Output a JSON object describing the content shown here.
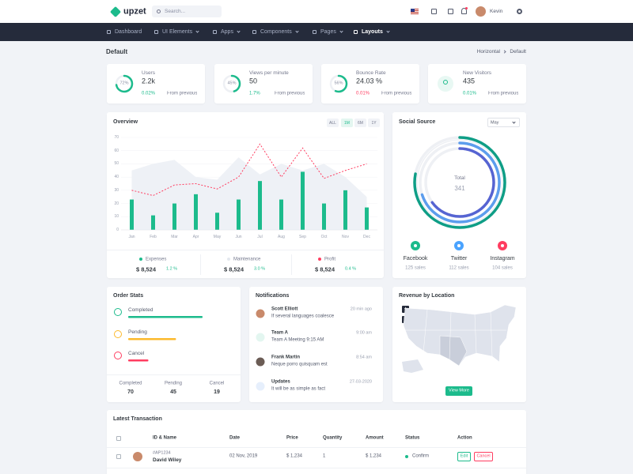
{
  "topbar": {
    "logo": "upzet",
    "search_placeholder": "Search...",
    "user": "Kevin"
  },
  "nav": [
    "Dashboard",
    "UI Elements",
    "Apps",
    "Components",
    "Pages",
    "Layouts"
  ],
  "page": {
    "title": "Default",
    "breadcrumb": [
      "Horizontal",
      "Default"
    ]
  },
  "stats": [
    {
      "label": "Users",
      "value": "2.2k",
      "progress": 72,
      "progress_label": "72%",
      "change": "0.02%",
      "change_color": "#1cbb8c",
      "note": "From previous"
    },
    {
      "label": "Views per minute",
      "value": "50",
      "progress": 45,
      "progress_label": "45%",
      "change": "1.7%",
      "change_color": "#1cbb8c",
      "note": "From previous"
    },
    {
      "label": "Bounce Rate",
      "value": "24.03 %",
      "progress": 56,
      "progress_label": "56%",
      "change": "0.01%",
      "change_color": "#ff3d60",
      "note": "From previous"
    },
    {
      "label": "New Visitors",
      "value": "435",
      "change": "0.01%",
      "change_color": "#1cbb8c",
      "note": "From previous"
    }
  ],
  "overview": {
    "title": "Overview",
    "ranges": [
      "ALL",
      "1M",
      "6M",
      "1Y"
    ],
    "categories": [
      "Jan",
      "Feb",
      "Mar",
      "Apr",
      "May",
      "Jun",
      "Jul",
      "Aug",
      "Sep",
      "Oct",
      "Nov",
      "Dec"
    ],
    "ylim": [
      0,
      70
    ],
    "yticks": [
      0,
      10,
      20,
      30,
      40,
      50,
      60,
      70
    ],
    "grid": true,
    "series": [
      {
        "name": "Expenses",
        "type": "bar",
        "color": "#1cbb8c",
        "values": [
          23,
          11,
          20,
          27,
          13,
          23,
          37,
          23,
          44,
          20,
          30,
          17
        ]
      },
      {
        "name": "Maintenance",
        "type": "area",
        "color": "#eef1f6",
        "values": [
          45,
          50,
          53,
          40,
          38,
          55,
          42,
          50,
          45,
          50,
          40,
          25
        ]
      },
      {
        "name": "Profit",
        "type": "line",
        "color": "#ff3d60",
        "values": [
          30,
          26,
          34,
          35,
          31,
          40,
          65,
          40,
          62,
          39,
          45,
          50
        ]
      }
    ],
    "summary": [
      {
        "total": "$ 8,524",
        "change": "1.2 %"
      },
      {
        "total": "$ 8,524",
        "change": "3.0 %"
      },
      {
        "total": "$ 8,524",
        "change": "0.4 %"
      }
    ]
  },
  "social": {
    "title": "Social Source",
    "filter": "May",
    "center_label": "Total",
    "total": 341,
    "sources": [
      {
        "name": "Facebook",
        "value": 125,
        "value_label": "125 sales",
        "color": "#1cbb8c",
        "ring_color": "#0f9e86"
      },
      {
        "name": "Twitter",
        "value": 112,
        "value_label": "112 sales",
        "color": "#4aa3ff",
        "ring_color": "#5c9ded"
      },
      {
        "name": "Instagram",
        "value": 104,
        "value_label": "104 sales",
        "color": "#ff3d60",
        "ring_color": "#5664d2"
      }
    ]
  },
  "order_stats": {
    "title": "Order Stats",
    "items": [
      {
        "name": "Completed",
        "value": 70,
        "color": "#1cbb8c"
      },
      {
        "name": "Pending",
        "value": 45,
        "color": "#fcb92c"
      },
      {
        "name": "Cancel",
        "value": 19,
        "color": "#ff3d60"
      }
    ]
  },
  "notifications": {
    "title": "Notifications",
    "items": [
      {
        "name": "Scott Elliott",
        "text": "If several languages coalesce",
        "time": "20 min ago"
      },
      {
        "name": "Team A",
        "text": "Team A Meeting 9:15 AM",
        "time": "9:00 am"
      },
      {
        "name": "Frank Martin",
        "text": "Neque porro quisquam est",
        "time": "8:54 am"
      },
      {
        "name": "Updates",
        "text": "It will be as simple as fact",
        "time": "27-03-2020"
      }
    ]
  },
  "revenue": {
    "title": "Revenue by Location",
    "zoom": [
      "+",
      "-"
    ],
    "button": "View More"
  },
  "transactions": {
    "title": "Latest Transaction",
    "columns": [
      "ID & Name",
      "Date",
      "Price",
      "Quantity",
      "Amount",
      "Status",
      "Action"
    ],
    "rows": [
      {
        "id": "#AP1234",
        "name": "David Wiley",
        "date": "02 Nov, 2019",
        "price": "$ 1,234",
        "quantity": "1",
        "amount": "$ 1,234",
        "status": "Confirm",
        "actions": [
          "Edit",
          "Cancel"
        ]
      }
    ]
  }
}
